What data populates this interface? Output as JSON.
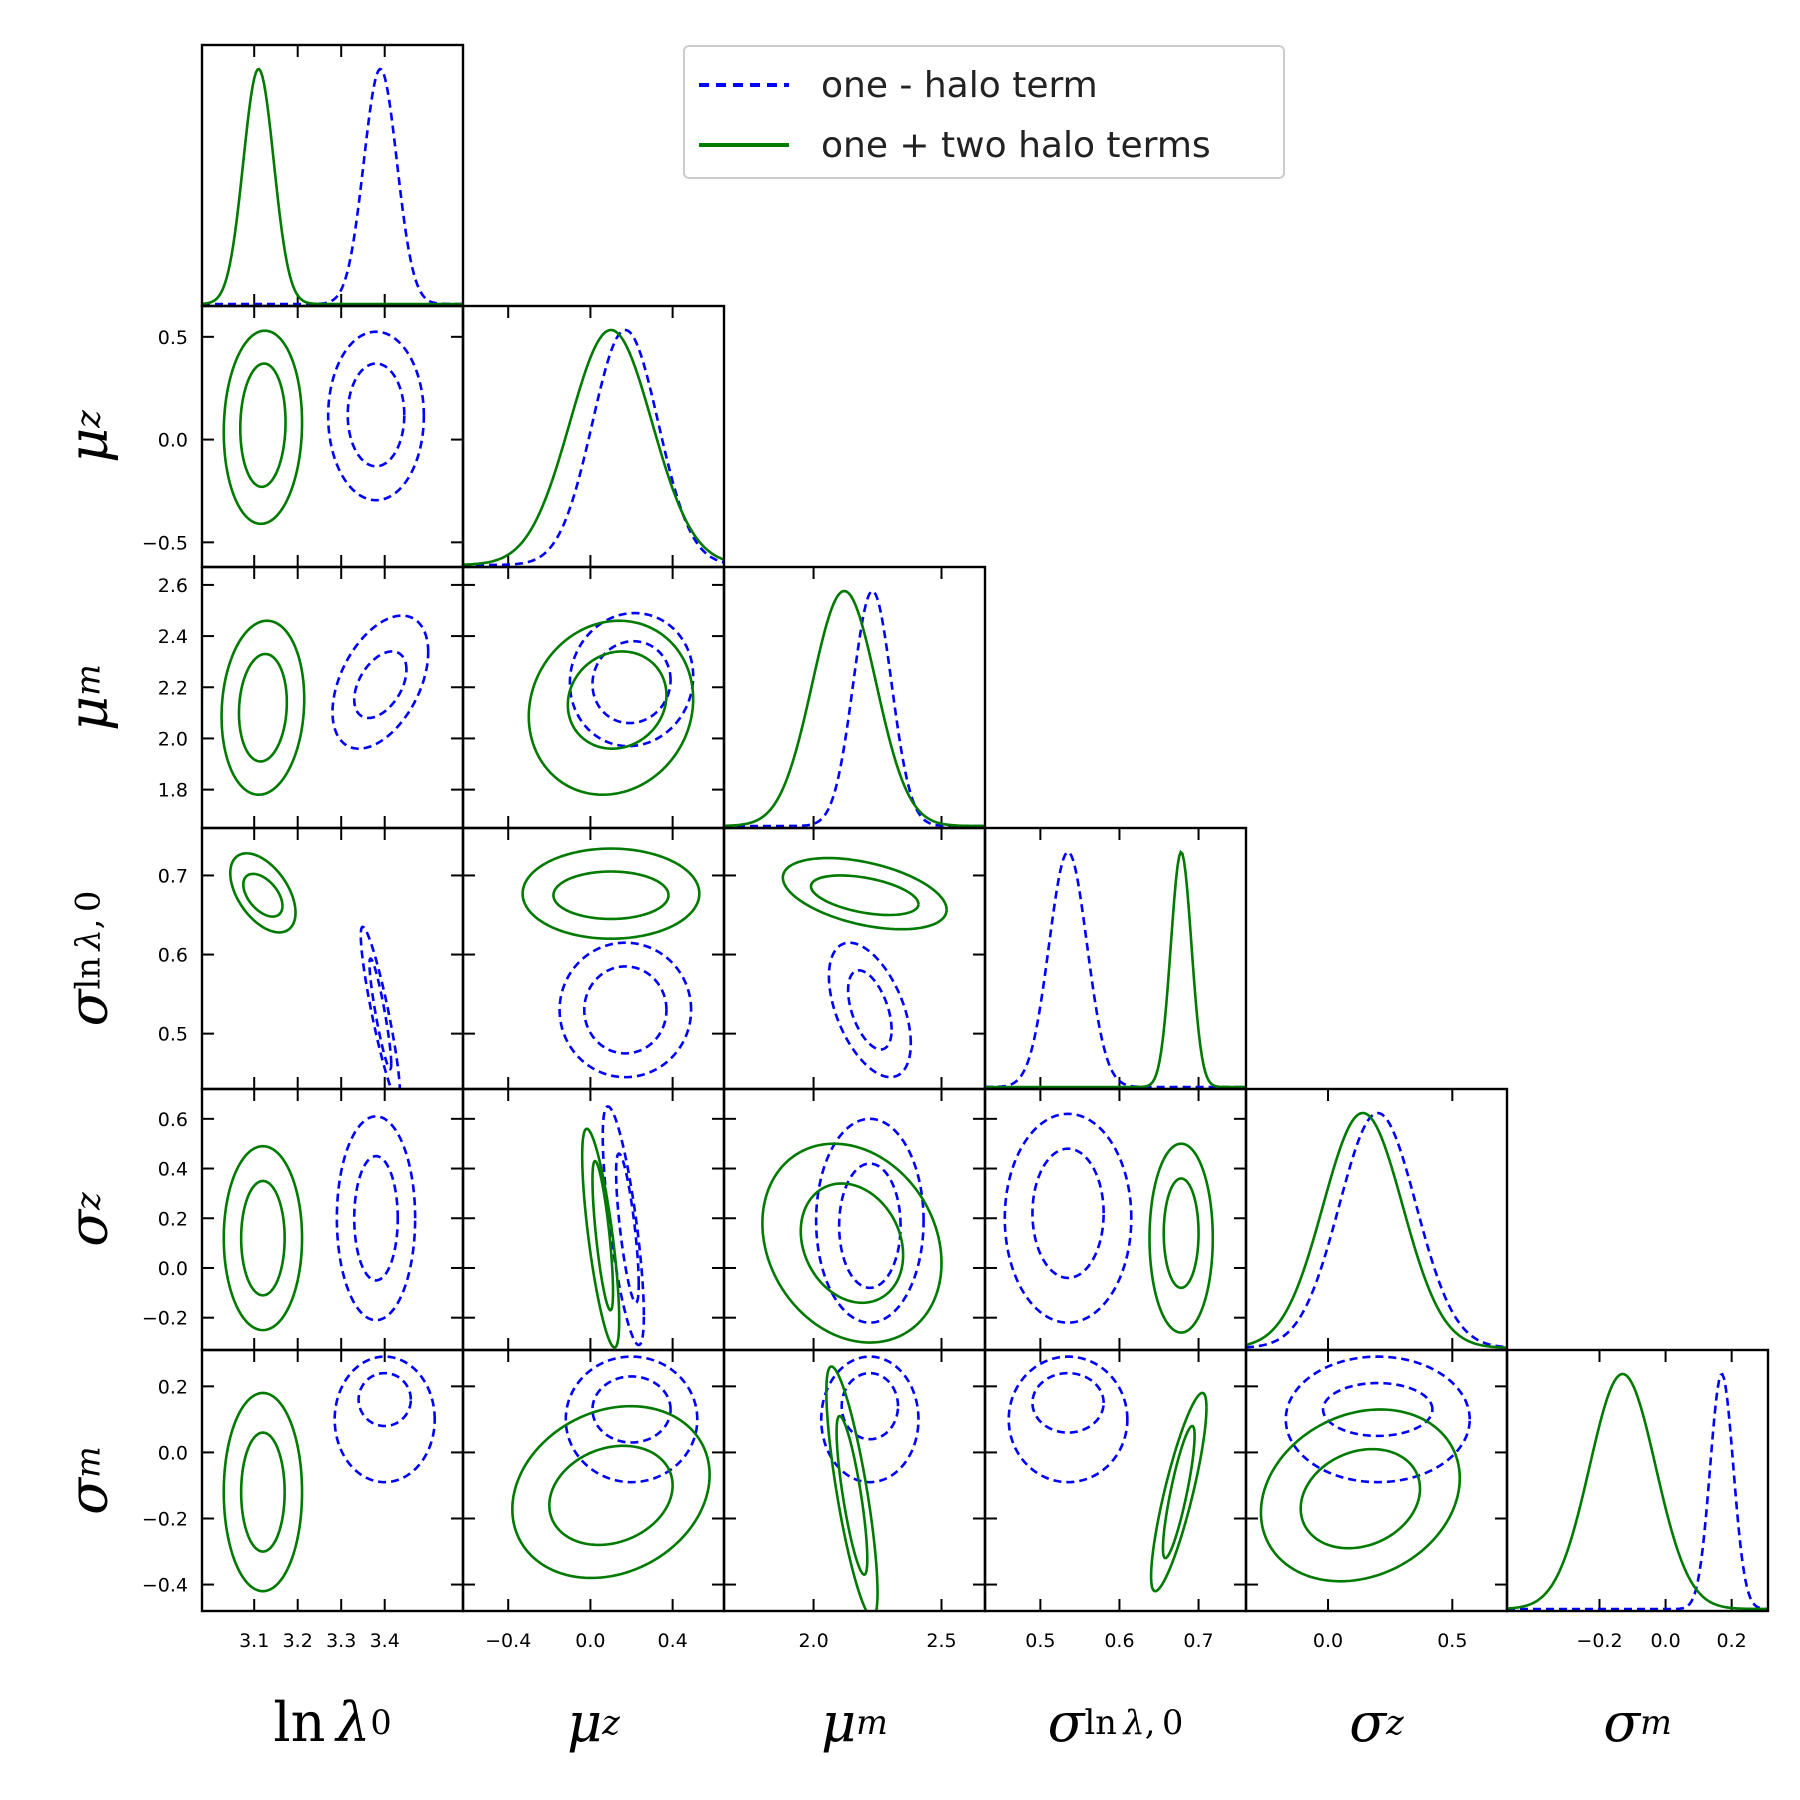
{
  "legend": {
    "entries": [
      {
        "label": "one - halo term",
        "color": "#0000ff",
        "style": "dashed"
      },
      {
        "label": "one + two halo terms",
        "color": "#007a00",
        "style": "solid"
      }
    ],
    "placement": "top-center"
  },
  "chart_data": {
    "type": "corner",
    "grid": false,
    "parameters": [
      {
        "key": "lnlam",
        "label": "ln λ0",
        "label_html": "ln&thinsp;<i>λ</i><sub>0</sub>",
        "range": [
          2.98,
          3.58
        ],
        "ticks": [
          3.1,
          3.2,
          3.3,
          3.4
        ],
        "tick_labels": [
          "3.1",
          "3.2",
          "3.3",
          "3.4"
        ]
      },
      {
        "key": "muz",
        "label": "μz",
        "label_html": "<i>μ</i><sub><i>z</i></sub>",
        "range": [
          -0.62,
          0.65
        ],
        "ticks": [
          -0.4,
          0.0,
          0.4
        ],
        "tick_labels": [
          "−0.4",
          "0.0",
          "0.4"
        ],
        "y_ticks": [
          -0.5,
          0.0,
          0.5
        ],
        "y_tick_labels": [
          "−0.5",
          "0.0",
          "0.5"
        ]
      },
      {
        "key": "mum",
        "label": "μm",
        "label_html": "<i>μ</i><sub><i>m</i></sub>",
        "range": [
          1.65,
          2.67
        ],
        "ticks": [
          2.0,
          2.5
        ],
        "tick_labels": [
          "2.0",
          "2.5"
        ],
        "y_ticks": [
          1.8,
          2.0,
          2.2,
          2.4,
          2.6
        ],
        "y_tick_labels": [
          "1.8",
          "2.0",
          "2.2",
          "2.4",
          "2.6"
        ]
      },
      {
        "key": "siglam",
        "label": "σ ln λ,0",
        "label_html": "<i>σ</i><sub>ln&thinsp;<i>λ</i>,&thinsp;0</sub>",
        "range": [
          0.43,
          0.76
        ],
        "ticks": [
          0.5,
          0.6,
          0.7
        ],
        "tick_labels": [
          "0.5",
          "0.6",
          "0.7"
        ],
        "y_ticks": [
          0.5,
          0.6,
          0.7
        ],
        "y_tick_labels": [
          "0.5",
          "0.6",
          "0.7"
        ]
      },
      {
        "key": "sigz",
        "label": "σz",
        "label_html": "<i>σ</i><sub><i>z</i></sub>",
        "range": [
          -0.33,
          0.72
        ],
        "ticks": [
          0.0,
          0.5
        ],
        "tick_labels": [
          "0.0",
          "0.5"
        ],
        "y_ticks": [
          -0.2,
          0.0,
          0.2,
          0.4,
          0.6
        ],
        "y_tick_labels": [
          "−0.2",
          "0.0",
          "0.2",
          "0.4",
          "0.6"
        ]
      },
      {
        "key": "sigm",
        "label": "σm",
        "label_html": "<i>σ</i><sub><i>m</i></sub>",
        "range": [
          -0.48,
          0.31
        ],
        "ticks": [
          -0.2,
          0.0,
          0.2
        ],
        "tick_labels": [
          "−0.2",
          "0.0",
          "0.2"
        ],
        "y_ticks": [
          -0.4,
          -0.2,
          0.0,
          0.2
        ],
        "y_tick_labels": [
          "−0.4",
          "−0.2",
          "0.0",
          "0.2"
        ]
      }
    ],
    "series": [
      {
        "name": "one - halo term",
        "color": "#0000ff",
        "dash": true,
        "marginals": [
          {
            "mean": 3.39,
            "sd": 0.038
          },
          {
            "mean": 0.17,
            "sd": 0.16
          },
          {
            "mean": 2.23,
            "sd": 0.075
          },
          {
            "mean": 0.535,
            "sd": 0.024
          },
          {
            "mean": 0.2,
            "sd": 0.155
          },
          {
            "mean": 0.17,
            "sd": 0.035
          }
        ],
        "pairs": [
          {
            "x": 0,
            "y": 1,
            "c68": [
              3.38,
              0.12,
              0.065,
              0.25,
              0
            ],
            "c95": [
              3.38,
              0.115,
              0.11,
              0.41,
              0
            ]
          },
          {
            "x": 0,
            "y": 2,
            "c68": [
              3.39,
              2.21,
              0.06,
              0.13,
              0.45
            ],
            "c95": [
              3.39,
              2.22,
              0.11,
              0.26,
              0.45
            ]
          },
          {
            "x": 1,
            "y": 2,
            "c68": [
              0.2,
              2.22,
              0.19,
              0.16,
              0.05
            ],
            "c95": [
              0.2,
              2.23,
              0.3,
              0.26,
              0.05
            ]
          },
          {
            "x": 0,
            "y": 3,
            "c68": [
              3.39,
              0.525,
              0.025,
              0.07,
              -0.9
            ],
            "c95": [
              3.39,
              0.525,
              0.045,
              0.11,
              -0.9
            ]
          },
          {
            "x": 1,
            "y": 3,
            "c68": [
              0.17,
              0.53,
              0.2,
              0.055,
              0
            ],
            "c95": [
              0.17,
              0.53,
              0.32,
              0.085,
              0
            ]
          },
          {
            "x": 2,
            "y": 3,
            "c68": [
              2.22,
              0.53,
              0.085,
              0.05,
              -0.5
            ],
            "c95": [
              2.22,
              0.53,
              0.16,
              0.085,
              -0.5
            ]
          },
          {
            "x": 0,
            "y": 4,
            "c68": [
              3.38,
              0.2,
              0.05,
              0.25,
              0
            ],
            "c95": [
              3.38,
              0.2,
              0.09,
              0.41,
              0
            ]
          },
          {
            "x": 1,
            "y": 4,
            "c68": [
              0.18,
              0.16,
              0.055,
              0.3,
              -0.75
            ],
            "c95": [
              0.16,
              0.17,
              0.1,
              0.48,
              -0.75
            ]
          },
          {
            "x": 2,
            "y": 4,
            "c68": [
              2.22,
              0.17,
              0.12,
              0.25,
              0
            ],
            "c95": [
              2.22,
              0.19,
              0.21,
              0.41,
              0
            ]
          },
          {
            "x": 3,
            "y": 4,
            "c68": [
              0.535,
              0.22,
              0.045,
              0.26,
              0
            ],
            "c95": [
              0.535,
              0.2,
              0.08,
              0.42,
              0
            ]
          },
          {
            "x": 0,
            "y": 5,
            "c68": [
              3.4,
              0.16,
              0.06,
              0.08,
              0
            ],
            "c95": [
              3.4,
              0.1,
              0.115,
              0.19,
              0
            ]
          },
          {
            "x": 1,
            "y": 5,
            "c68": [
              0.2,
              0.13,
              0.19,
              0.1,
              0
            ],
            "c95": [
              0.2,
              0.1,
              0.32,
              0.19,
              0
            ]
          },
          {
            "x": 2,
            "y": 5,
            "c68": [
              2.22,
              0.14,
              0.11,
              0.1,
              0
            ],
            "c95": [
              2.22,
              0.1,
              0.19,
              0.19,
              0
            ]
          },
          {
            "x": 3,
            "y": 5,
            "c68": [
              0.535,
              0.15,
              0.045,
              0.09,
              0
            ],
            "c95": [
              0.535,
              0.1,
              0.075,
              0.19,
              0
            ]
          },
          {
            "x": 4,
            "y": 5,
            "c68": [
              0.2,
              0.13,
              0.22,
              0.08,
              0
            ],
            "c95": [
              0.2,
              0.1,
              0.37,
              0.19,
              0
            ]
          }
        ]
      },
      {
        "name": "one + two halo terms",
        "color": "#007a00",
        "dash": false,
        "marginals": [
          {
            "mean": 3.11,
            "sd": 0.035
          },
          {
            "mean": 0.1,
            "sd": 0.2
          },
          {
            "mean": 2.12,
            "sd": 0.125
          },
          {
            "mean": 0.678,
            "sd": 0.013
          },
          {
            "mean": 0.14,
            "sd": 0.16
          },
          {
            "mean": -0.13,
            "sd": 0.1
          }
        ],
        "pairs": [
          {
            "x": 0,
            "y": 1,
            "c68": [
              3.12,
              0.07,
              0.052,
              0.3,
              0.05
            ],
            "c95": [
              3.12,
              0.06,
              0.09,
              0.47,
              0.05
            ]
          },
          {
            "x": 0,
            "y": 2,
            "c68": [
              3.12,
              2.12,
              0.055,
              0.21,
              0.1
            ],
            "c95": [
              3.12,
              2.12,
              0.095,
              0.34,
              0.1
            ]
          },
          {
            "x": 1,
            "y": 2,
            "c68": [
              0.13,
              2.15,
              0.24,
              0.19,
              0.1
            ],
            "c95": [
              0.1,
              2.12,
              0.4,
              0.34,
              0.1
            ]
          },
          {
            "x": 0,
            "y": 3,
            "c68": [
              3.12,
              0.675,
              0.045,
              0.027,
              -0.5
            ],
            "c95": [
              3.12,
              0.678,
              0.075,
              0.05,
              -0.5
            ]
          },
          {
            "x": 1,
            "y": 3,
            "c68": [
              0.1,
              0.675,
              0.28,
              0.03,
              0
            ],
            "c95": [
              0.1,
              0.677,
              0.43,
              0.057,
              0
            ]
          },
          {
            "x": 2,
            "y": 3,
            "c68": [
              2.2,
              0.675,
              0.21,
              0.025,
              -0.45
            ],
            "c95": [
              2.2,
              0.677,
              0.32,
              0.045,
              -0.45
            ]
          },
          {
            "x": 0,
            "y": 4,
            "c68": [
              3.12,
              0.12,
              0.05,
              0.23,
              0
            ],
            "c95": [
              3.12,
              0.12,
              0.09,
              0.37,
              0
            ]
          },
          {
            "x": 1,
            "y": 4,
            "c68": [
              0.06,
              0.13,
              0.05,
              0.3,
              -0.75
            ],
            "c95": [
              0.05,
              0.12,
              0.09,
              0.44,
              -0.75
            ]
          },
          {
            "x": 2,
            "y": 4,
            "c68": [
              2.15,
              0.1,
              0.2,
              0.24,
              -0.2
            ],
            "c95": [
              2.15,
              0.1,
              0.35,
              0.4,
              -0.2
            ]
          },
          {
            "x": 3,
            "y": 4,
            "c68": [
              0.678,
              0.14,
              0.022,
              0.22,
              0
            ],
            "c95": [
              0.678,
              0.12,
              0.04,
              0.38,
              0
            ]
          },
          {
            "x": 0,
            "y": 5,
            "c68": [
              3.12,
              -0.12,
              0.05,
              0.18,
              0
            ],
            "c95": [
              3.12,
              -0.12,
              0.09,
              0.3,
              0
            ]
          },
          {
            "x": 1,
            "y": 5,
            "c68": [
              0.1,
              -0.13,
              0.3,
              0.15,
              0.2
            ],
            "c95": [
              0.1,
              -0.12,
              0.48,
              0.26,
              0.2
            ]
          },
          {
            "x": 2,
            "y": 5,
            "c68": [
              2.15,
              -0.13,
              0.06,
              0.24,
              -0.8
            ],
            "c95": [
              2.15,
              -0.12,
              0.1,
              0.38,
              -0.8
            ]
          },
          {
            "x": 3,
            "y": 5,
            "c68": [
              0.675,
              -0.12,
              0.02,
              0.2,
              0.85
            ],
            "c95": [
              0.675,
              -0.12,
              0.035,
              0.3,
              0.85
            ]
          },
          {
            "x": 4,
            "y": 5,
            "c68": [
              0.13,
              -0.14,
              0.24,
              0.15,
              0.2
            ],
            "c95": [
              0.13,
              -0.13,
              0.4,
              0.26,
              0.2
            ]
          }
        ]
      }
    ]
  }
}
